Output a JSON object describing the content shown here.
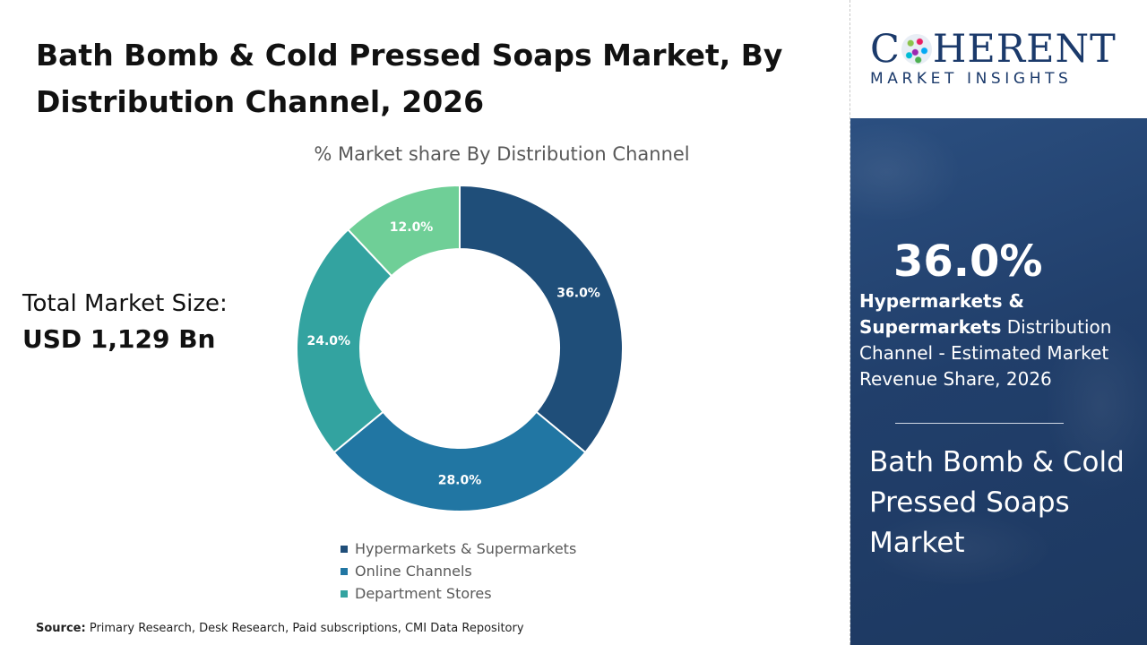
{
  "title": "Bath Bomb & Cold Pressed Soaps Market, By Distribution Channel, 2026",
  "total_market": {
    "label": "Total Market Size:",
    "value": "USD 1,129 Bn"
  },
  "source": {
    "label": "Source:",
    "text": "Primary Research, Desk Research, Paid subscriptions, CMI Data Repository"
  },
  "logo": {
    "word_pre": "C",
    "word_post": "HERENT",
    "subtitle": "MARKET INSIGHTS"
  },
  "highlight": {
    "percent": "36.0%",
    "segment_bold": "Hypermarkets & Supermarkets",
    "segment_rest": " Distribution Channel - Estimated Market Revenue Share, 2026",
    "market_name": "Bath Bomb & Cold Pressed Soaps Market"
  },
  "colors": {
    "hypermarkets": "#1f4e79",
    "online": "#2176a3",
    "department": "#33a3a0",
    "others": "#6fcf97"
  },
  "chart_data": {
    "type": "pie",
    "subtitle": "% Market share By Distribution Channel",
    "slices": [
      {
        "name": "Hypermarkets & Supermarkets",
        "value": 36.0,
        "label": "36.0%",
        "color": "#1f4e79",
        "in_legend": true
      },
      {
        "name": "Online Channels",
        "value": 28.0,
        "label": "28.0%",
        "color": "#2176a3",
        "in_legend": true
      },
      {
        "name": "Department Stores",
        "value": 24.0,
        "label": "24.0%",
        "color": "#33a3a0",
        "in_legend": true
      },
      {
        "name": "",
        "value": 12.0,
        "label": "12.0%",
        "color": "#6fcf97",
        "in_legend": false
      }
    ],
    "legend_position": "bottom",
    "donut": true
  }
}
